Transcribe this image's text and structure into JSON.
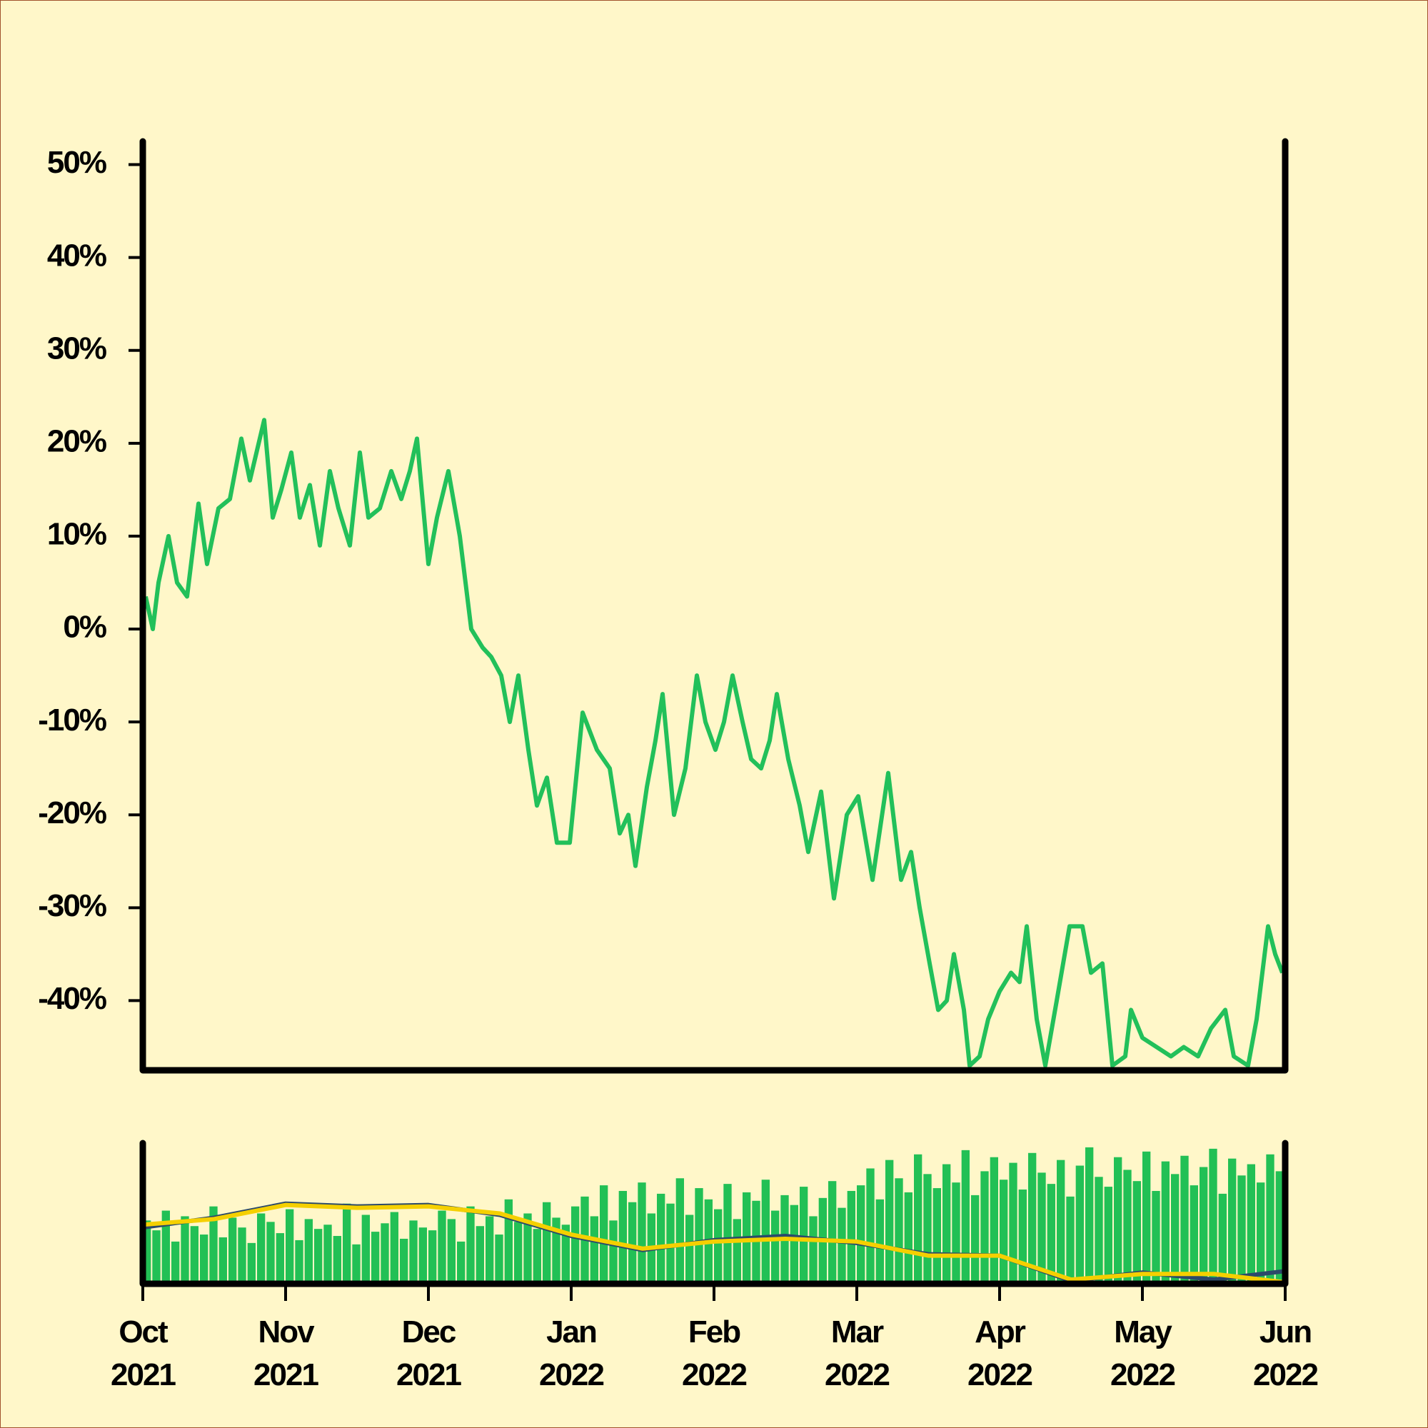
{
  "chart_data": [
    {
      "type": "line",
      "color": "#22c05a",
      "xlim": [
        0,
        8
      ],
      "ylim": [
        -47.5,
        52.5
      ],
      "yticks": [
        {
          "value": 50,
          "label": "50%"
        },
        {
          "value": 40,
          "label": "40%"
        },
        {
          "value": 30,
          "label": "30%"
        },
        {
          "value": 20,
          "label": "20%"
        },
        {
          "value": 10,
          "label": "10%"
        },
        {
          "value": 0,
          "label": "0%"
        },
        {
          "value": -10,
          "label": "-10%"
        },
        {
          "value": -20,
          "label": "-20%"
        },
        {
          "value": -30,
          "label": "-30%"
        },
        {
          "value": -40,
          "label": "-40%"
        }
      ],
      "x": [
        0.02,
        0.07,
        0.11,
        0.18,
        0.24,
        0.31,
        0.39,
        0.45,
        0.53,
        0.61,
        0.69,
        0.75,
        0.85,
        0.91,
        0.97,
        1.04,
        1.1,
        1.17,
        1.24,
        1.31,
        1.37,
        1.45,
        1.52,
        1.58,
        1.66,
        1.74,
        1.81,
        1.87,
        1.92,
        2.0,
        2.06,
        2.14,
        2.22,
        2.3,
        2.38,
        2.44,
        2.51,
        2.57,
        2.63,
        2.7,
        2.76,
        2.83,
        2.9,
        2.99,
        3.08,
        3.18,
        3.27,
        3.34,
        3.4,
        3.45,
        3.53,
        3.59,
        3.64,
        3.72,
        3.8,
        3.88,
        3.94,
        4.01,
        4.07,
        4.13,
        4.2,
        4.26,
        4.33,
        4.39,
        4.44,
        4.52,
        4.6,
        4.66,
        4.75,
        4.84,
        4.93,
        5.01,
        5.11,
        5.22,
        5.31,
        5.38,
        5.44,
        5.51,
        5.57,
        5.63,
        5.68,
        5.75,
        5.79,
        5.86,
        5.92,
        6.0,
        6.08,
        6.14,
        6.19,
        6.26,
        6.32,
        6.4,
        6.49,
        6.58,
        6.64,
        6.72,
        6.79,
        6.88,
        6.92,
        7.0,
        7.1,
        7.2,
        7.29,
        7.39,
        7.48,
        7.58,
        7.64,
        7.74,
        7.8,
        7.88,
        7.93,
        7.98
      ],
      "values": [
        3.5,
        0,
        5,
        10,
        5,
        3.5,
        13.5,
        7,
        13,
        14,
        20.5,
        16,
        22.5,
        12,
        15,
        19,
        12,
        15.5,
        9,
        17,
        13,
        9,
        19,
        12,
        13,
        17,
        14,
        17,
        20.5,
        7,
        12,
        17,
        10,
        0,
        -2,
        -3,
        -5,
        -10,
        -5,
        -13,
        -19,
        -16,
        -23,
        -23,
        -9,
        -13,
        -15,
        -22,
        -20,
        -25.5,
        -17,
        -12,
        -7,
        -20,
        -15,
        -5,
        -10,
        -13,
        -10,
        -5,
        -10,
        -14,
        -15,
        -12,
        -7,
        -14,
        -19,
        -24,
        -17.5,
        -29,
        -20,
        -18,
        -27,
        -15.5,
        -27,
        -24,
        -30,
        -36,
        -41,
        -40,
        -35,
        -41,
        -47,
        -46,
        -42,
        -39,
        -37,
        -38,
        -32,
        -42,
        -47,
        -40,
        -32,
        -32,
        -37,
        -36,
        -47,
        -46,
        -41,
        -44,
        -45,
        -46,
        -45,
        -46,
        -43,
        -41,
        -46,
        -47,
        -42,
        -32,
        -35,
        -37
      ]
    },
    {
      "type": "bar",
      "color": "#22c055",
      "xlim": [
        0,
        8
      ],
      "ylim": [
        0,
        100
      ],
      "xticks": [
        {
          "value": 0,
          "label": "Oct 2021"
        },
        {
          "value": 1,
          "label": "Nov 2021"
        },
        {
          "value": 2,
          "label": "Dec 2021"
        },
        {
          "value": 3,
          "label": "Jan 2022"
        },
        {
          "value": 4,
          "label": "Feb 2022"
        },
        {
          "value": 5,
          "label": "Mar 2022"
        },
        {
          "value": 6,
          "label": "Apr 2022"
        },
        {
          "value": 7,
          "label": "May 2022"
        },
        {
          "value": 8,
          "label": "Jun 2022"
        }
      ],
      "values": [
        45,
        38,
        52,
        30,
        48,
        41,
        35,
        55,
        33,
        47,
        40,
        29,
        50,
        44,
        36,
        53,
        31,
        46,
        39,
        42,
        34,
        57,
        28,
        49,
        37,
        43,
        51,
        32,
        45,
        40,
        38,
        52,
        46,
        30,
        55,
        41,
        48,
        35,
        60,
        44,
        50,
        39,
        58,
        47,
        42,
        55,
        62,
        48,
        70,
        45,
        66,
        58,
        72,
        50,
        64,
        57,
        75,
        49,
        68,
        60,
        53,
        71,
        46,
        65,
        59,
        74,
        52,
        63,
        56,
        69,
        48,
        61,
        73,
        54,
        66,
        70,
        82,
        60,
        88,
        75,
        65,
        92,
        78,
        68,
        85,
        72,
        95,
        63,
        80,
        90,
        74,
        86,
        67,
        93,
        79,
        71,
        88,
        62,
        84,
        97,
        76,
        69,
        90,
        81,
        73,
        94,
        66,
        87,
        78,
        91,
        70,
        83,
        96,
        64,
        89,
        77,
        85,
        72,
        92,
        80
      ],
      "series": [
        {
          "color": "#2b4a6b",
          "x": [
            0,
            0.5,
            1,
            1.5,
            2,
            2.5,
            3,
            3.5,
            4,
            4.5,
            5,
            5.5,
            6,
            6.5,
            7,
            7.5,
            8
          ],
          "values": [
            40,
            47,
            57,
            55,
            56,
            49,
            34,
            24,
            31,
            34,
            29,
            21,
            20,
            2,
            8,
            3,
            9
          ]
        },
        {
          "color": "#f5d000",
          "x": [
            0,
            0.5,
            1,
            1.5,
            2,
            2.5,
            3,
            3.5,
            4,
            4.5,
            5,
            5.5,
            6,
            6.5,
            7,
            7.5,
            8
          ],
          "values": [
            42,
            46,
            56,
            54,
            55,
            50,
            35,
            25,
            30,
            32,
            30,
            20,
            20,
            3,
            7,
            7,
            1
          ]
        }
      ]
    }
  ]
}
